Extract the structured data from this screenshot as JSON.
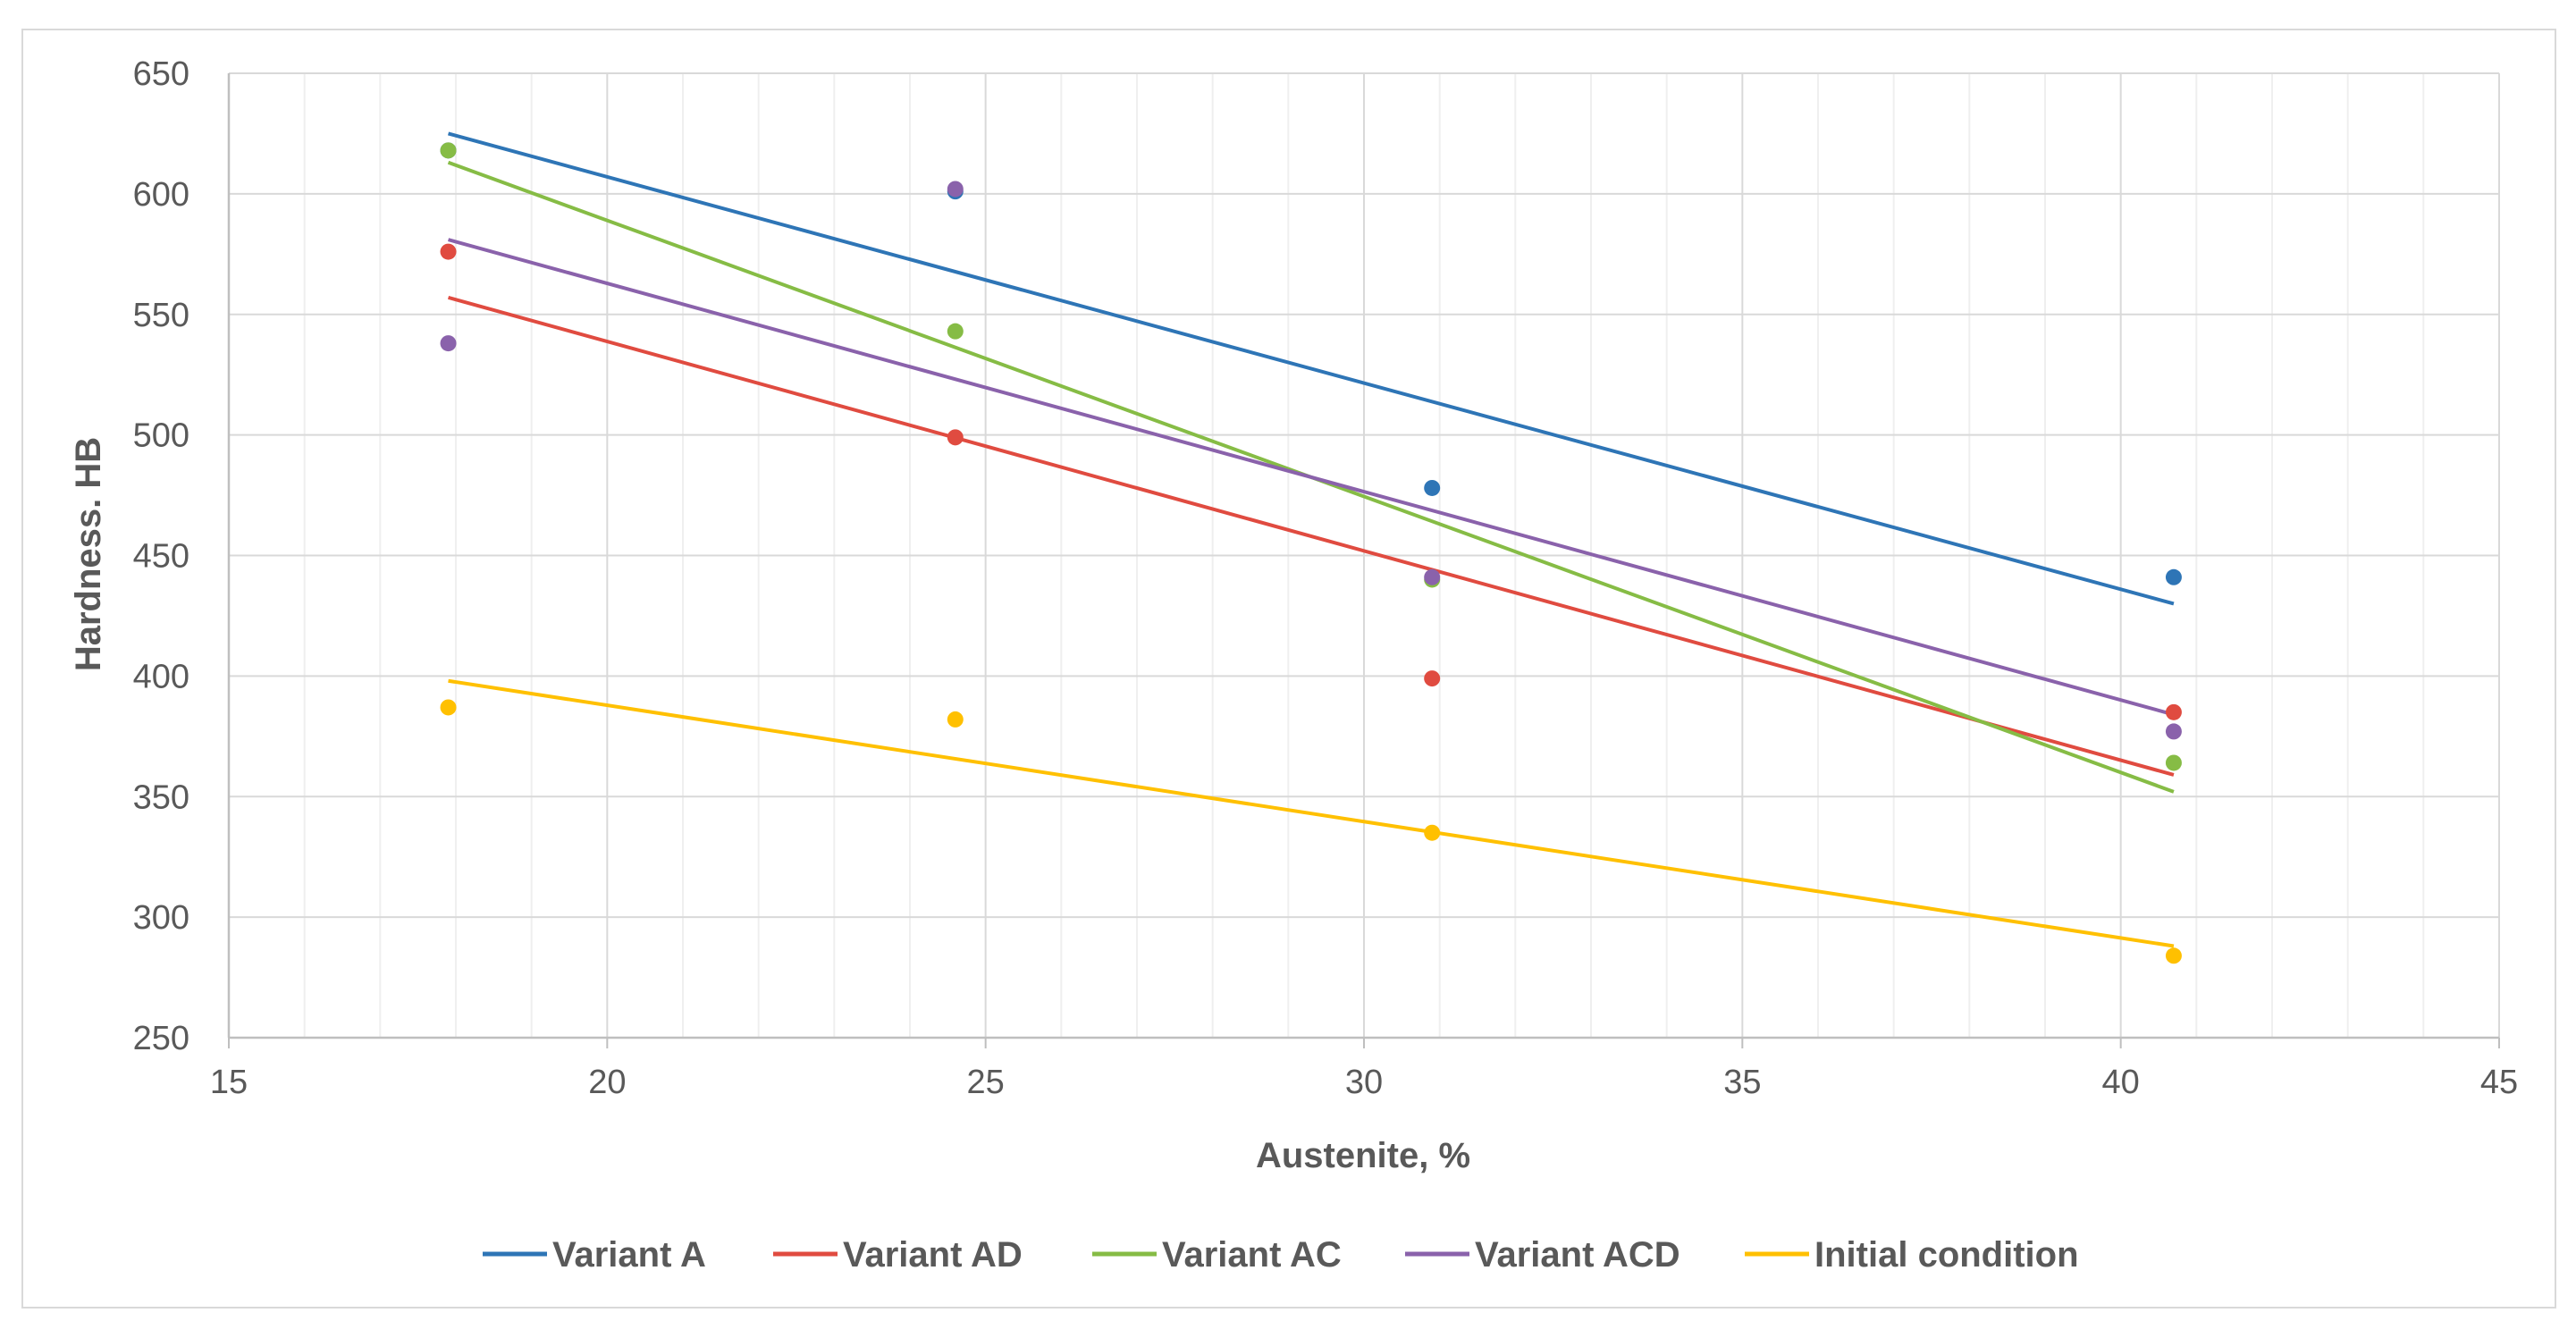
{
  "chart_data": {
    "type": "scatter",
    "title": "",
    "xlabel": "Austenite, %",
    "ylabel": "Hardness. HB",
    "xlim": [
      15,
      45
    ],
    "ylim": [
      250,
      650
    ],
    "xticks": [
      15,
      20,
      25,
      30,
      35,
      40,
      45
    ],
    "yticks": [
      250,
      300,
      350,
      400,
      450,
      500,
      550,
      600,
      650
    ],
    "x_minor_step": 1,
    "grid": true,
    "legend_position": "bottom",
    "x": [
      17.9,
      24.6,
      30.9,
      40.7
    ],
    "series": [
      {
        "name": "Variant A",
        "color": "#2e75b6",
        "values": [
          618,
          601,
          478,
          441
        ],
        "trendline": [
          625,
          430
        ]
      },
      {
        "name": "Variant AD",
        "color": "#e04b40",
        "values": [
          576,
          499,
          399,
          385
        ],
        "trendline": [
          557,
          359
        ]
      },
      {
        "name": "Variant AC",
        "color": "#86bc45",
        "values": [
          618,
          543,
          440,
          364
        ],
        "trendline": [
          613,
          352
        ]
      },
      {
        "name": "Variant ACD",
        "color": "#8a62ab",
        "values": [
          538,
          602,
          441,
          377
        ],
        "trendline": [
          581,
          384
        ]
      },
      {
        "name": "Initial condition",
        "color": "#ffc000",
        "values": [
          387,
          382,
          335,
          284
        ],
        "trendline": [
          398,
          288
        ]
      }
    ]
  }
}
